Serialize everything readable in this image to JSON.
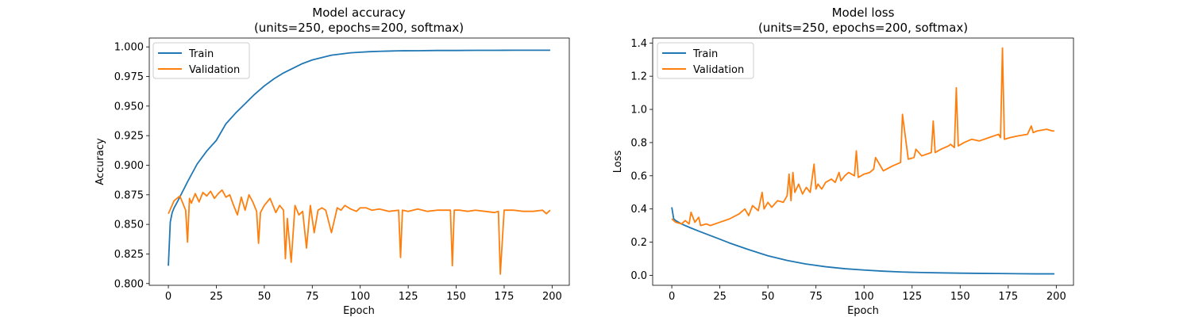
{
  "chart_data": [
    {
      "type": "line",
      "title": "Model accuracy\n(units=250, epochs=200, softmax)",
      "title_lines": [
        "Model accuracy",
        "(units=250, epochs=200, softmax)"
      ],
      "xlabel": "Epoch",
      "ylabel": "Accuracy",
      "xlim": [
        -9.95,
        208.95
      ],
      "ylim": [
        0.7985,
        1.0075
      ],
      "xticks": [
        0,
        25,
        50,
        75,
        100,
        125,
        150,
        175,
        200
      ],
      "yticks": [
        0.8,
        0.825,
        0.85,
        0.875,
        0.9,
        0.925,
        0.95,
        0.975,
        1.0
      ],
      "ytick_decimals": 3,
      "legend": "upper left",
      "series": [
        {
          "name": "Train",
          "color": "#1f77b4",
          "x": [
            0,
            1,
            2,
            3,
            5,
            10,
            15,
            20,
            25,
            30,
            35,
            40,
            45,
            50,
            55,
            60,
            65,
            70,
            75,
            80,
            85,
            90,
            95,
            100,
            105,
            110,
            115,
            120,
            130,
            140,
            150,
            160,
            170,
            180,
            190,
            199
          ],
          "y": [
            0.815,
            0.852,
            0.86,
            0.864,
            0.87,
            0.886,
            0.901,
            0.912,
            0.921,
            0.935,
            0.944,
            0.952,
            0.96,
            0.967,
            0.973,
            0.978,
            0.982,
            0.986,
            0.989,
            0.991,
            0.993,
            0.994,
            0.995,
            0.9955,
            0.996,
            0.9963,
            0.9965,
            0.9967,
            0.9968,
            0.997,
            0.997,
            0.9971,
            0.9971,
            0.9972,
            0.9972,
            0.9972
          ]
        },
        {
          "name": "Validation",
          "color": "#ff7f0e",
          "x": [
            0,
            3,
            6,
            9,
            10,
            11,
            12,
            14,
            16,
            18,
            20,
            22,
            24,
            26,
            28,
            30,
            32,
            34,
            36,
            38,
            40,
            42,
            44,
            46,
            47,
            48,
            50,
            53,
            56,
            58,
            60,
            61,
            62,
            64,
            66,
            68,
            70,
            72,
            74,
            76,
            78,
            80,
            82,
            85,
            88,
            90,
            92,
            95,
            98,
            100,
            103,
            106,
            110,
            115,
            120,
            121,
            122,
            125,
            130,
            135,
            140,
            145,
            147,
            148,
            149,
            152,
            156,
            160,
            165,
            170,
            172,
            173,
            175,
            180,
            185,
            190,
            195,
            197,
            199
          ],
          "y": [
            0.859,
            0.87,
            0.874,
            0.862,
            0.835,
            0.872,
            0.868,
            0.876,
            0.869,
            0.877,
            0.874,
            0.878,
            0.872,
            0.876,
            0.879,
            0.873,
            0.875,
            0.866,
            0.858,
            0.873,
            0.862,
            0.875,
            0.869,
            0.861,
            0.834,
            0.86,
            0.866,
            0.872,
            0.86,
            0.866,
            0.862,
            0.821,
            0.855,
            0.818,
            0.866,
            0.858,
            0.861,
            0.83,
            0.866,
            0.843,
            0.862,
            0.864,
            0.862,
            0.843,
            0.864,
            0.862,
            0.866,
            0.863,
            0.861,
            0.864,
            0.864,
            0.862,
            0.863,
            0.861,
            0.862,
            0.822,
            0.862,
            0.861,
            0.863,
            0.861,
            0.862,
            0.862,
            0.862,
            0.815,
            0.862,
            0.862,
            0.861,
            0.862,
            0.861,
            0.86,
            0.861,
            0.808,
            0.862,
            0.862,
            0.861,
            0.861,
            0.862,
            0.859,
            0.862
          ]
        }
      ]
    },
    {
      "type": "line",
      "title": "Model loss\n(units=250, epochs=200, softmax)",
      "title_lines": [
        "Model loss",
        "(units=250, epochs=200, softmax)"
      ],
      "xlabel": "Epoch",
      "ylabel": "Loss",
      "xlim": [
        -9.95,
        208.95
      ],
      "ylim": [
        -0.06,
        1.43
      ],
      "xticks": [
        0,
        25,
        50,
        75,
        100,
        125,
        150,
        175,
        200
      ],
      "yticks": [
        0.0,
        0.2,
        0.4,
        0.6,
        0.8,
        1.0,
        1.2,
        1.4
      ],
      "ytick_decimals": 1,
      "legend": "upper left",
      "series": [
        {
          "name": "Train",
          "color": "#1f77b4",
          "x": [
            0,
            1,
            2,
            5,
            10,
            15,
            20,
            25,
            30,
            40,
            50,
            60,
            70,
            80,
            90,
            100,
            110,
            120,
            130,
            140,
            150,
            160,
            170,
            180,
            190,
            199
          ],
          "y": [
            0.41,
            0.34,
            0.33,
            0.31,
            0.285,
            0.262,
            0.24,
            0.218,
            0.195,
            0.155,
            0.118,
            0.09,
            0.068,
            0.052,
            0.04,
            0.032,
            0.025,
            0.02,
            0.017,
            0.015,
            0.013,
            0.012,
            0.011,
            0.01,
            0.009,
            0.009
          ]
        },
        {
          "name": "Validation",
          "color": "#ff7f0e",
          "x": [
            0,
            2,
            5,
            7,
            9,
            10,
            12,
            14,
            15,
            18,
            20,
            25,
            30,
            35,
            38,
            40,
            42,
            45,
            47,
            48,
            50,
            52,
            55,
            58,
            60,
            61,
            62,
            63,
            64,
            66,
            68,
            70,
            72,
            74,
            75,
            76,
            78,
            80,
            83,
            85,
            87,
            88,
            90,
            92,
            95,
            96,
            97,
            100,
            103,
            105,
            106,
            110,
            115,
            119,
            120,
            123,
            126,
            127,
            130,
            135,
            136,
            137,
            140,
            144,
            145,
            147,
            148,
            149,
            152,
            156,
            160,
            165,
            170,
            171,
            172,
            173,
            176,
            180,
            185,
            187,
            188,
            190,
            195,
            198,
            199
          ],
          "y": [
            0.34,
            0.32,
            0.31,
            0.33,
            0.31,
            0.38,
            0.32,
            0.35,
            0.3,
            0.31,
            0.3,
            0.32,
            0.34,
            0.37,
            0.4,
            0.36,
            0.42,
            0.39,
            0.5,
            0.4,
            0.44,
            0.41,
            0.45,
            0.44,
            0.48,
            0.61,
            0.45,
            0.62,
            0.5,
            0.55,
            0.49,
            0.53,
            0.5,
            0.67,
            0.52,
            0.55,
            0.52,
            0.56,
            0.58,
            0.56,
            0.62,
            0.57,
            0.6,
            0.62,
            0.6,
            0.75,
            0.59,
            0.61,
            0.62,
            0.64,
            0.71,
            0.63,
            0.66,
            0.68,
            0.97,
            0.7,
            0.71,
            0.76,
            0.72,
            0.74,
            0.93,
            0.74,
            0.76,
            0.78,
            0.79,
            0.77,
            1.13,
            0.78,
            0.8,
            0.82,
            0.81,
            0.83,
            0.85,
            0.83,
            1.37,
            0.82,
            0.83,
            0.84,
            0.85,
            0.9,
            0.86,
            0.87,
            0.88,
            0.87,
            0.87
          ]
        }
      ]
    }
  ]
}
